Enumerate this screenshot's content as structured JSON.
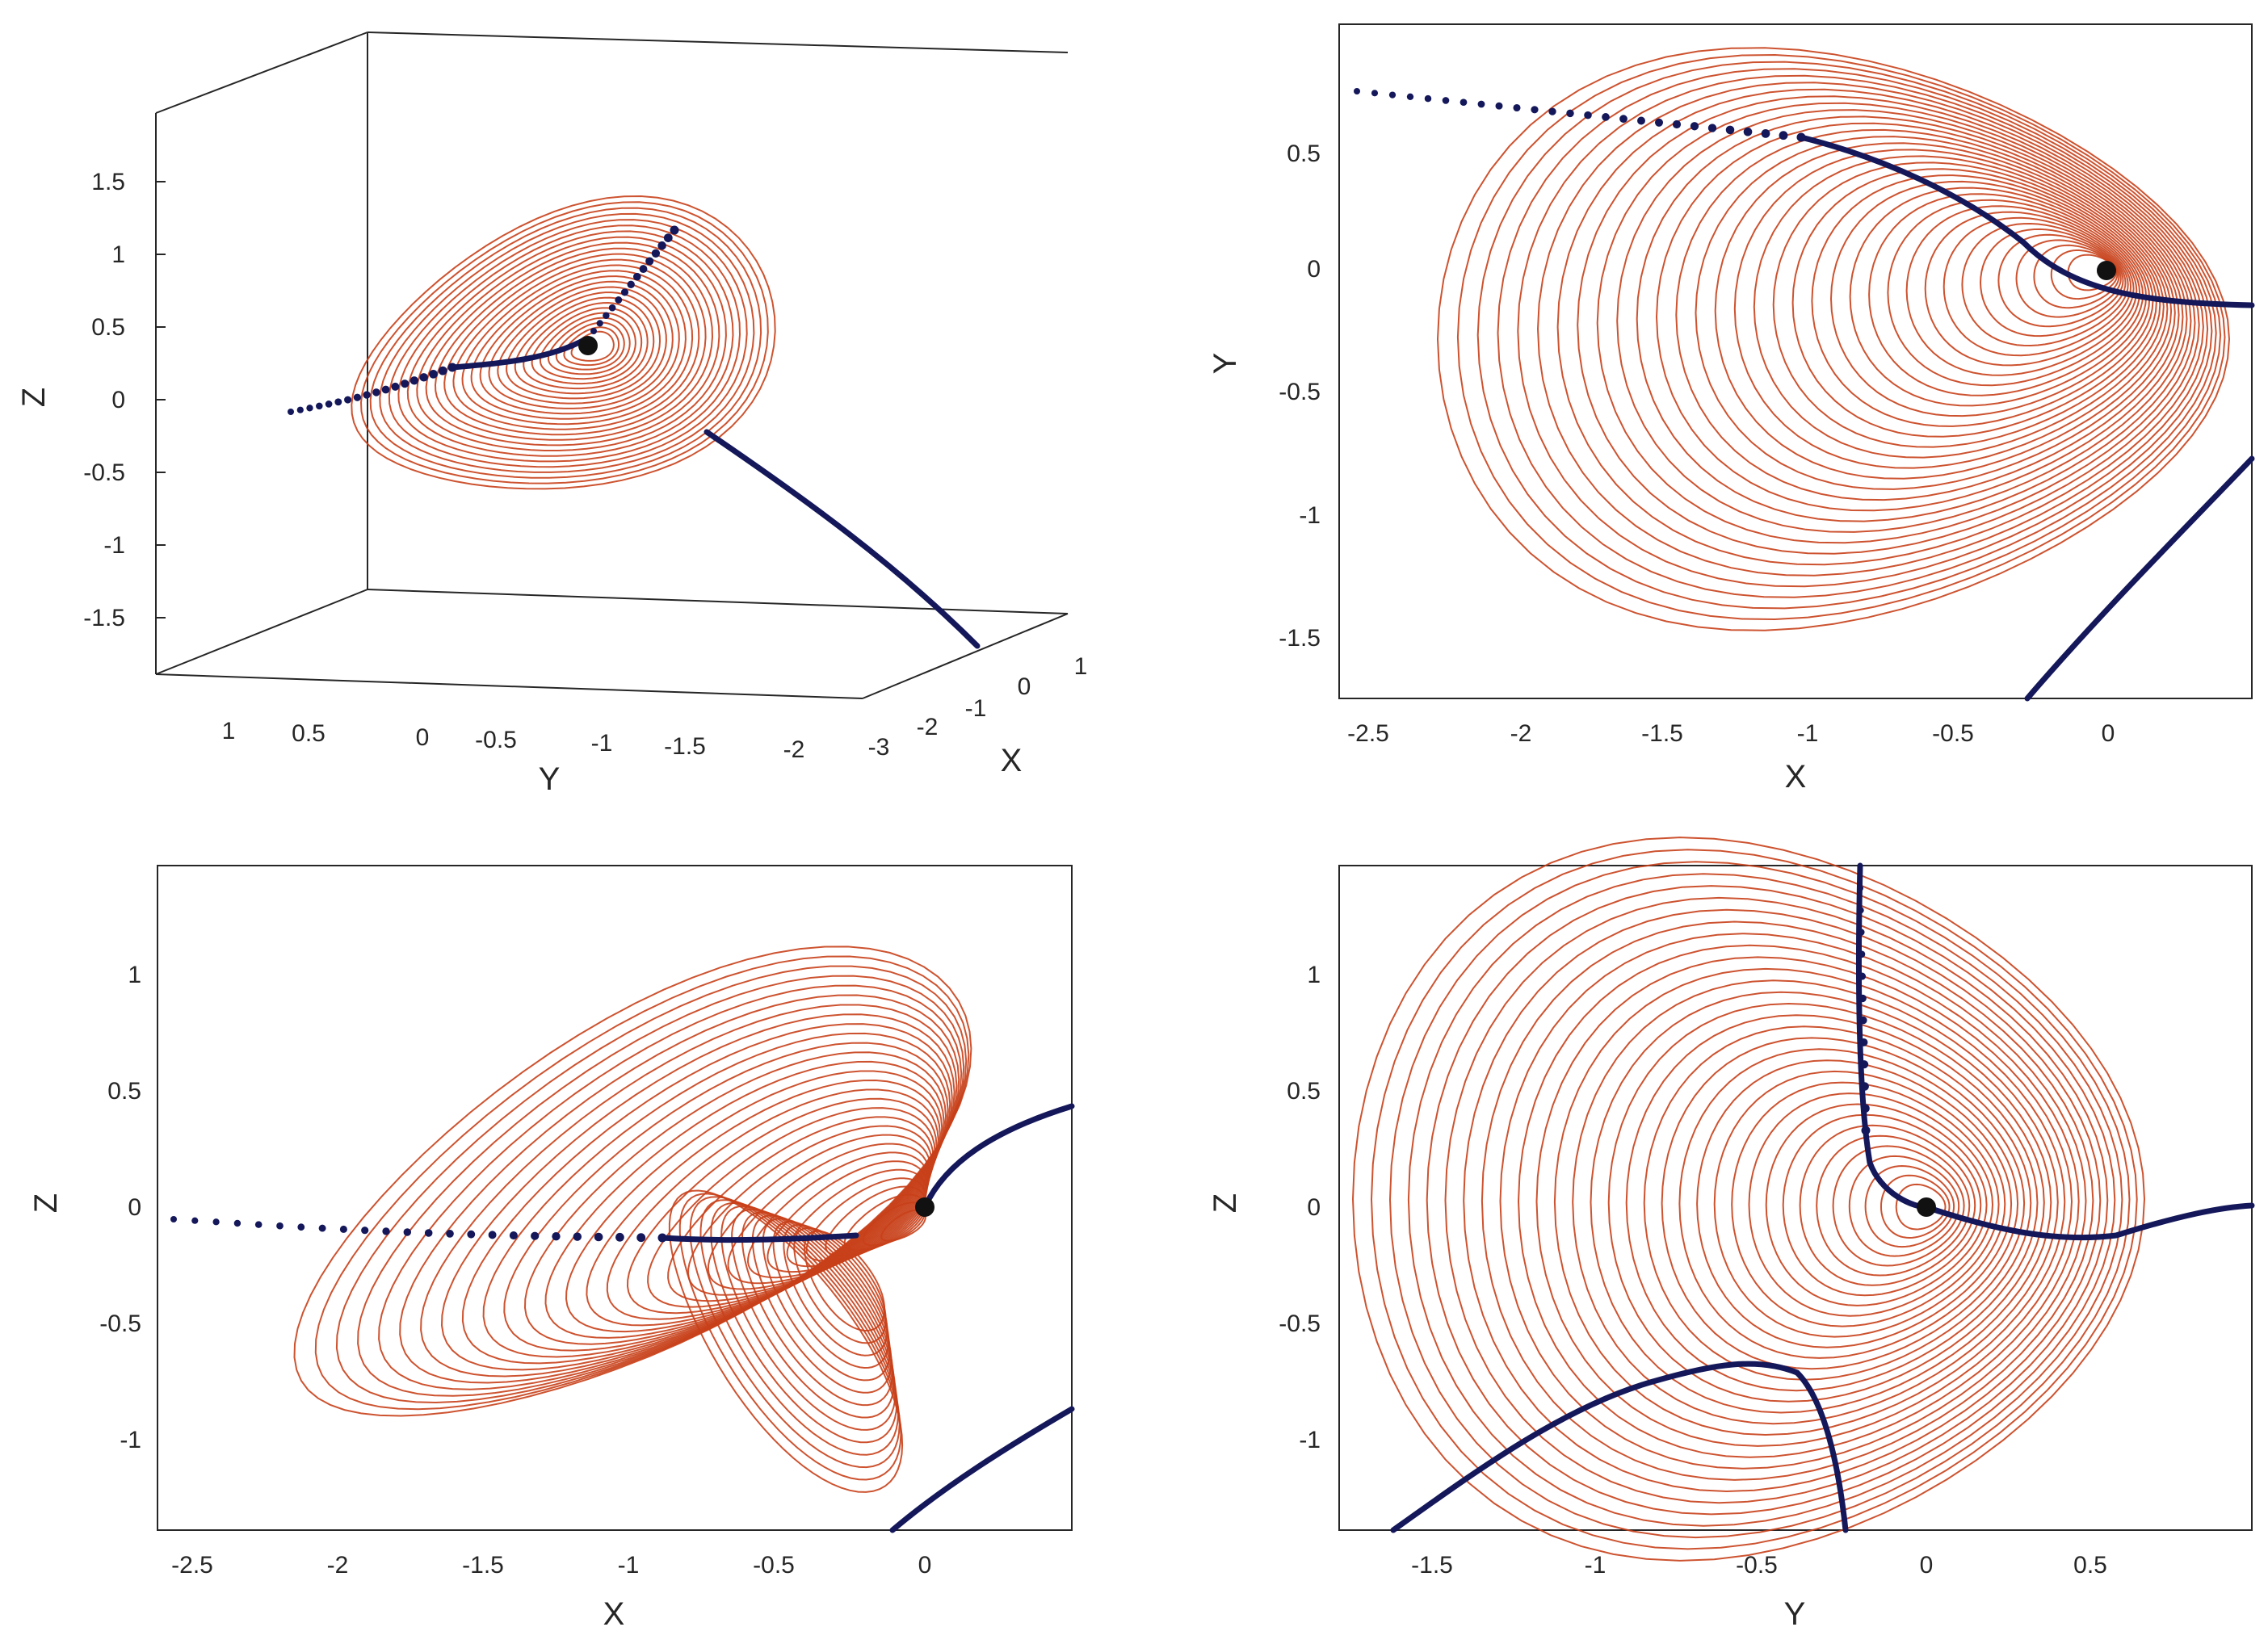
{
  "colors": {
    "attractor": "#c8401a",
    "manifold": "#14185a",
    "equilibrium": "#111111",
    "axes": "#262626"
  },
  "chart_data": [
    {
      "panel": "3d-view",
      "type": "line",
      "description_series": [
        "chaotic attractor",
        "stable manifold",
        "unstable manifold",
        "equilibrium point"
      ],
      "xlabel": "X",
      "ylabel": "Y",
      "zlabel": "Z",
      "x_ticks": [
        "-3",
        "-2",
        "-1",
        "0",
        "1"
      ],
      "y_ticks": [
        "1",
        "0.5",
        "0",
        "-0.5",
        "-1",
        "-1.5",
        "-2"
      ],
      "z_ticks": [
        "1.5",
        "1",
        "0.5",
        "0",
        "-0.5",
        "-1",
        "-1.5"
      ],
      "xlim": [
        -3,
        1.5
      ],
      "ylim": [
        -2.3,
        1.3
      ],
      "zlim": [
        -1.9,
        2.0
      ],
      "equilibrium": [
        0,
        0,
        0
      ]
    },
    {
      "panel": "xy-projection",
      "type": "line",
      "xlabel": "X",
      "ylabel": "Y",
      "x_ticks": [
        "-2.5",
        "-2",
        "-1.5",
        "-1",
        "-0.5",
        "0"
      ],
      "y_ticks": [
        "0.5",
        "0",
        "-0.5",
        "-1",
        "-1.5"
      ],
      "xlim": [
        -2.65,
        0.48
      ],
      "ylim": [
        -1.75,
        0.95
      ],
      "equilibrium": [
        0,
        0
      ]
    },
    {
      "panel": "xz-projection",
      "type": "line",
      "xlabel": "X",
      "ylabel": "Z",
      "x_ticks": [
        "-2.5",
        "-2",
        "-1.5",
        "-1",
        "-0.5",
        "0"
      ],
      "y_ticks": [
        "1",
        "0.5",
        "0",
        "-0.5",
        "-1"
      ],
      "xlim": [
        -2.65,
        0.5
      ],
      "ylim": [
        -1.4,
        1.48
      ],
      "equilibrium": [
        0,
        0
      ]
    },
    {
      "panel": "yz-projection",
      "type": "line",
      "xlabel": "Y",
      "ylabel": "Z",
      "x_ticks": [
        "-1.5",
        "-1",
        "-0.5",
        "0",
        "0.5"
      ],
      "y_ticks": [
        "1",
        "0.5",
        "0",
        "-0.5",
        "-1"
      ],
      "xlim": [
        -1.8,
        0.98
      ],
      "ylim": [
        -1.4,
        1.48
      ],
      "equilibrium": [
        0,
        0
      ]
    }
  ]
}
